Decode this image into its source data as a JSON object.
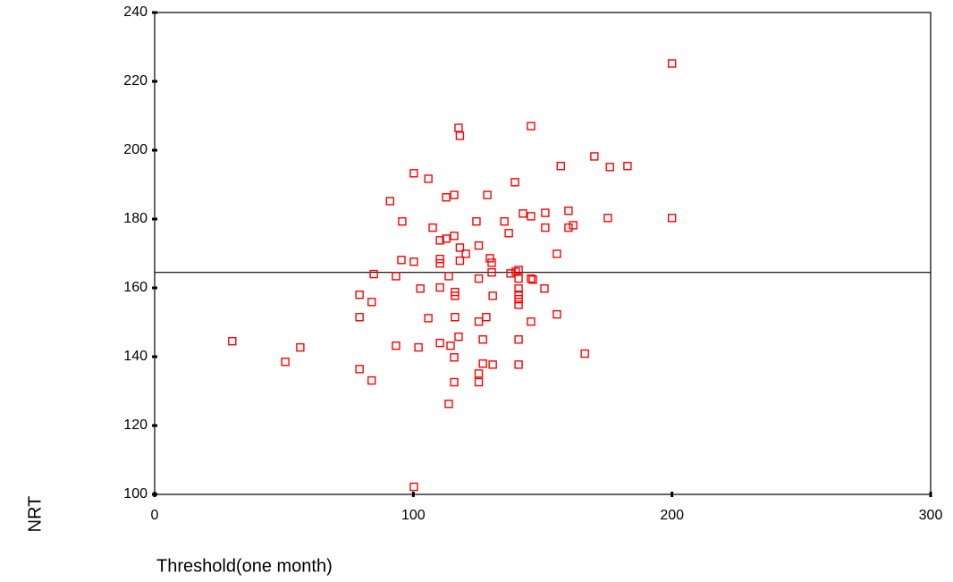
{
  "chart_data": {
    "type": "scatter",
    "x_label": "Threshold(one month)",
    "y_label": "NRT",
    "color": "#ff0000",
    "xlim": [
      0,
      300
    ],
    "xticks": [
      0,
      100,
      200,
      300
    ],
    "ylim": [
      100,
      240
    ],
    "yticks": [
      100,
      120,
      140,
      160,
      180,
      200,
      220,
      240
    ],
    "grid": false,
    "hline": 164.5,
    "x": [
      30,
      50.5,
      56.3,
      200,
      200,
      117.5,
      118,
      145.5,
      100.2,
      105.8,
      91,
      112.7,
      115.8,
      128.6,
      139.3,
      157,
      170,
      176,
      182.8,
      95.7,
      107.5,
      124.4,
      135.2,
      136.9,
      142.4,
      145.5,
      151,
      160,
      175.2,
      151,
      160,
      161.8,
      155.5,
      110.3,
      112.7,
      115.8,
      118,
      120.3,
      125.3,
      95.4,
      100.2,
      110.3,
      110.3,
      118,
      129.6,
      130.3,
      84.7,
      93.3,
      113.7,
      125.3,
      130.3,
      137.6,
      139.6,
      140.7,
      140.7,
      145.5,
      146.2,
      102.7,
      110.3,
      116.1,
      116.1,
      130.7,
      140.7,
      140.7,
      150.7,
      79.2,
      83.9,
      140.7,
      140.7,
      79.2,
      105.8,
      116.1,
      128.2,
      125.3,
      145.5,
      155.5,
      117.5,
      126.9,
      140.7,
      93.3,
      102,
      110.3,
      114.4,
      166.3,
      115.8,
      79.2,
      126.9,
      130.7,
      140.7,
      125.3,
      83.9,
      115.8,
      125.3,
      113.7,
      100.2
    ],
    "y": [
      144.5,
      138.5,
      142.7,
      225.2,
      180.3,
      206.5,
      204.2,
      207,
      193.3,
      191.7,
      185.2,
      186.3,
      187,
      187,
      190.7,
      195.4,
      198.2,
      195.1,
      195.4,
      179.3,
      177.5,
      179.3,
      179.3,
      175.9,
      181.6,
      180.8,
      181.8,
      182.4,
      180.3,
      177.5,
      177.5,
      178.2,
      169.9,
      173.8,
      174.3,
      175.1,
      171.7,
      169.9,
      172.3,
      168.1,
      167.6,
      168.4,
      167.1,
      167.9,
      168.6,
      167.3,
      164,
      163.4,
      163.4,
      162.7,
      164.5,
      164.2,
      164.7,
      165.2,
      162.7,
      162.7,
      162.4,
      159.8,
      160.1,
      158.8,
      157.7,
      157.7,
      159.8,
      158,
      159.8,
      158,
      155.9,
      156.7,
      155.1,
      151.5,
      151.2,
      151.5,
      151.5,
      150.2,
      150.2,
      152.3,
      145.8,
      145,
      145,
      143.2,
      142.7,
      144,
      143.2,
      140.9,
      139.8,
      136.4,
      138,
      137.7,
      137.7,
      135.1,
      133.1,
      132.6,
      132.6,
      126.3,
      102.2
    ]
  }
}
